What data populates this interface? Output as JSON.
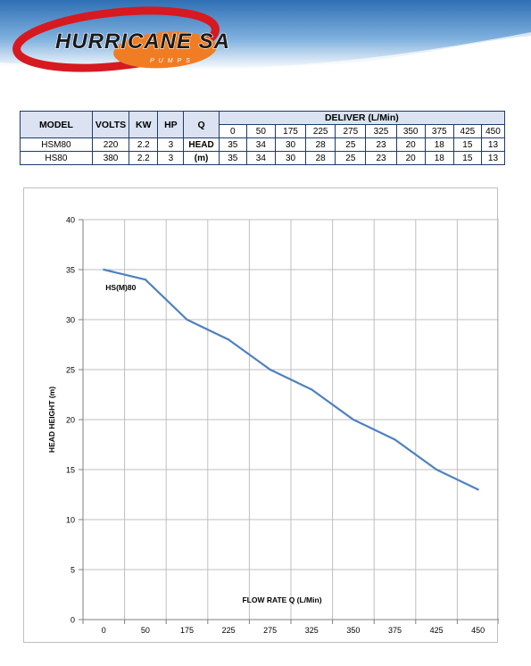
{
  "brand": {
    "logo_text": "HURRICANE SA",
    "logo_sub": "PUMPS",
    "colors": {
      "red": "#d71920",
      "orange": "#f07d23",
      "dark": "#1a1a1a",
      "sky": "#6fa3d6"
    }
  },
  "table": {
    "headers": {
      "model": "MODEL",
      "volts": "VOLTS",
      "kw": "KW",
      "hp": "HP",
      "q": "Q",
      "deliver": "DELIVER (L/Min)"
    },
    "flow_values": [
      "0",
      "50",
      "175",
      "225",
      "275",
      "325",
      "350",
      "375",
      "425",
      "450"
    ],
    "rows": [
      {
        "model": "HSM80",
        "volts": "220",
        "kw": "2.2",
        "hp": "3",
        "head": [
          "35",
          "34",
          "30",
          "28",
          "25",
          "23",
          "20",
          "18",
          "15",
          "13"
        ]
      },
      {
        "model": "HS80",
        "volts": "380",
        "kw": "2.2",
        "hp": "3",
        "head": [
          "35",
          "34",
          "30",
          "28",
          "25",
          "23",
          "20",
          "18",
          "15",
          "13"
        ]
      }
    ],
    "head_label_1": "HEAD",
    "head_label_2": "(m)"
  },
  "chart_data": {
    "type": "line",
    "categories": [
      "0",
      "50",
      "175",
      "225",
      "275",
      "325",
      "350",
      "375",
      "425",
      "450"
    ],
    "series": [
      {
        "name": "HS(M)80",
        "values": [
          35,
          34,
          30,
          28,
          25,
          23,
          20,
          18,
          15,
          13
        ],
        "color": "#4f81bd"
      }
    ],
    "xlabel": "FLOW RATE Q (L/Min)",
    "ylabel": "HEAD HEIGHT (m)",
    "ylim": [
      0,
      40
    ],
    "yticks": [
      0,
      5,
      10,
      15,
      20,
      25,
      30,
      35,
      40
    ],
    "grid": true
  }
}
